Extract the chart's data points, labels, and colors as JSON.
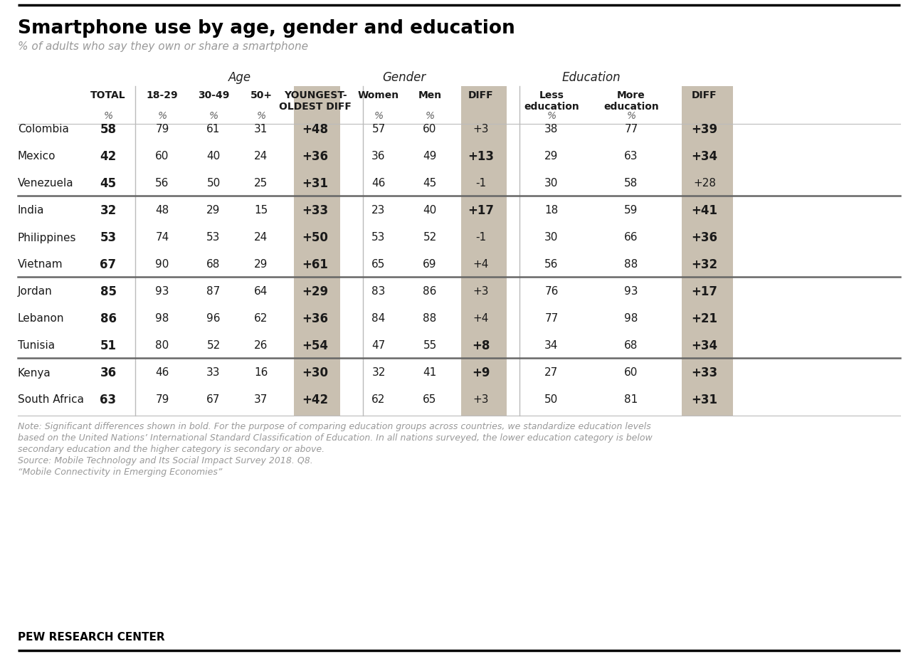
{
  "title": "Smartphone use by age, gender and education",
  "subtitle": "% of adults who say they own or share a smartphone",
  "rows": [
    {
      "country": "Colombia",
      "total": "58",
      "a1829": "79",
      "a3049": "61",
      "a50p": "31",
      "adiff": "+48",
      "women": "57",
      "men": "60",
      "gdiff": "+3",
      "ledu": "38",
      "medu": "77",
      "ediff": "+39",
      "group": 0,
      "bold_g": false,
      "bold_e": true
    },
    {
      "country": "Mexico",
      "total": "42",
      "a1829": "60",
      "a3049": "40",
      "a50p": "24",
      "adiff": "+36",
      "women": "36",
      "men": "49",
      "gdiff": "+13",
      "ledu": "29",
      "medu": "63",
      "ediff": "+34",
      "group": 0,
      "bold_g": true,
      "bold_e": true
    },
    {
      "country": "Venezuela",
      "total": "45",
      "a1829": "56",
      "a3049": "50",
      "a50p": "25",
      "adiff": "+31",
      "women": "46",
      "men": "45",
      "gdiff": "-1",
      "ledu": "30",
      "medu": "58",
      "ediff": "+28",
      "group": 0,
      "bold_g": false,
      "bold_e": false
    },
    {
      "country": "India",
      "total": "32",
      "a1829": "48",
      "a3049": "29",
      "a50p": "15",
      "adiff": "+33",
      "women": "23",
      "men": "40",
      "gdiff": "+17",
      "ledu": "18",
      "medu": "59",
      "ediff": "+41",
      "group": 1,
      "bold_g": true,
      "bold_e": true
    },
    {
      "country": "Philippines",
      "total": "53",
      "a1829": "74",
      "a3049": "53",
      "a50p": "24",
      "adiff": "+50",
      "women": "53",
      "men": "52",
      "gdiff": "-1",
      "ledu": "30",
      "medu": "66",
      "ediff": "+36",
      "group": 1,
      "bold_g": false,
      "bold_e": true
    },
    {
      "country": "Vietnam",
      "total": "67",
      "a1829": "90",
      "a3049": "68",
      "a50p": "29",
      "adiff": "+61",
      "women": "65",
      "men": "69",
      "gdiff": "+4",
      "ledu": "56",
      "medu": "88",
      "ediff": "+32",
      "group": 1,
      "bold_g": false,
      "bold_e": true
    },
    {
      "country": "Jordan",
      "total": "85",
      "a1829": "93",
      "a3049": "87",
      "a50p": "64",
      "adiff": "+29",
      "women": "83",
      "men": "86",
      "gdiff": "+3",
      "ledu": "76",
      "medu": "93",
      "ediff": "+17",
      "group": 2,
      "bold_g": false,
      "bold_e": true
    },
    {
      "country": "Lebanon",
      "total": "86",
      "a1829": "98",
      "a3049": "96",
      "a50p": "62",
      "adiff": "+36",
      "women": "84",
      "men": "88",
      "gdiff": "+4",
      "ledu": "77",
      "medu": "98",
      "ediff": "+21",
      "group": 2,
      "bold_g": false,
      "bold_e": true
    },
    {
      "country": "Tunisia",
      "total": "51",
      "a1829": "80",
      "a3049": "52",
      "a50p": "26",
      "adiff": "+54",
      "women": "47",
      "men": "55",
      "gdiff": "+8",
      "ledu": "34",
      "medu": "68",
      "ediff": "+34",
      "group": 2,
      "bold_g": true,
      "bold_e": true
    },
    {
      "country": "Kenya",
      "total": "36",
      "a1829": "46",
      "a3049": "33",
      "a50p": "16",
      "adiff": "+30",
      "women": "32",
      "men": "41",
      "gdiff": "+9",
      "ledu": "27",
      "medu": "60",
      "ediff": "+33",
      "group": 3,
      "bold_g": true,
      "bold_e": true
    },
    {
      "country": "South Africa",
      "total": "63",
      "a1829": "79",
      "a3049": "67",
      "a50p": "37",
      "adiff": "+42",
      "women": "62",
      "men": "65",
      "gdiff": "+3",
      "ledu": "50",
      "medu": "81",
      "ediff": "+31",
      "group": 3,
      "bold_g": false,
      "bold_e": true
    }
  ],
  "note_line1": "Note: Significant differences shown in bold. For the purpose of comparing education groups across countries, we standardize education levels",
  "note_line2": "based on the United Nations’ International Standard Classification of Education. In all nations surveyed, the lower education category is below",
  "note_line3": "secondary education and the higher category is secondary or above.",
  "note_line4": "Source: Mobile Technology and Its Social Impact Survey 2018. Q8.",
  "note_line5": "“Mobile Connectivity in Emerging Economies”",
  "footer": "PEW RESEARCH CENTER",
  "shaded_color": "#c9c0b1",
  "sep_color": "#666666",
  "light_line_color": "#bbbbbb",
  "title_color": "#000000",
  "subtitle_color": "#999999",
  "note_color": "#999999",
  "text_color": "#1a1a1a"
}
